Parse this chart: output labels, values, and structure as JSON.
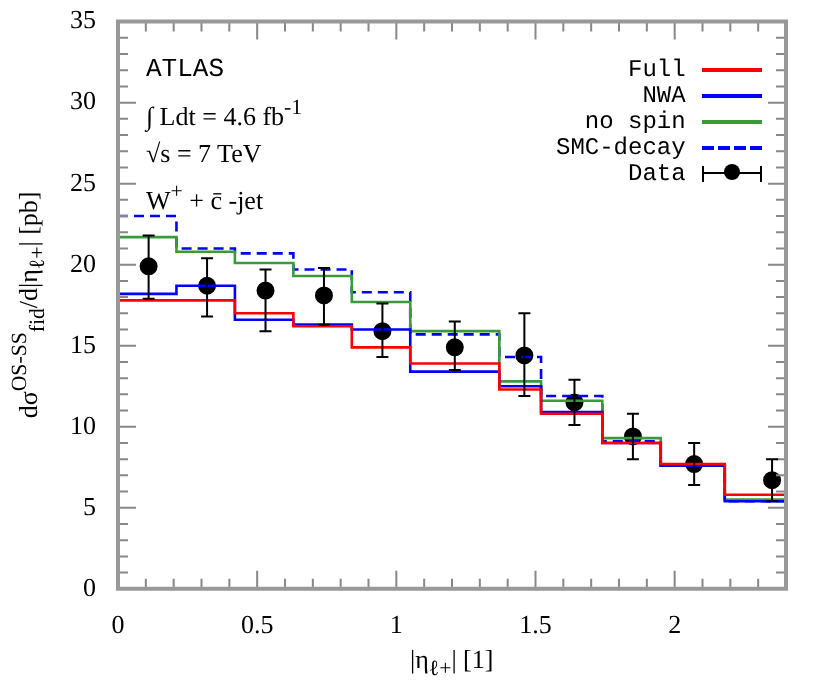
{
  "chart_data": {
    "type": "step",
    "xlabel": "|η$_{ℓ+}$| [1]",
    "ylabel": "dσ$^{OS-SS}$$_{fid}$/d|η$_{ℓ+}$| [pb]",
    "annotations": [
      "ATLAS",
      "∫ Ldt = 4.6 fb$^{-1}$",
      "√s = 7 TeV",
      "W$^{+}$ + c̄ -jet"
    ],
    "x": [
      0,
      0.21,
      0.42,
      0.63,
      0.84,
      1.05,
      1.37,
      1.52,
      1.74,
      1.95,
      2.18,
      2.4
    ],
    "series": [
      {
        "name": "Full",
        "color": "#ff0000",
        "line_style": "solid",
        "values": [
          17.8,
          17.8,
          17.0,
          16.2,
          14.9,
          13.9,
          12.3,
          10.8,
          9.0,
          7.7,
          5.8,
          5.8
        ]
      },
      {
        "name": "NWA",
        "color": "#0000ff",
        "line_style": "solid",
        "values": [
          18.2,
          18.7,
          16.6,
          16.3,
          16.0,
          13.4,
          12.5,
          10.9,
          9.0,
          7.6,
          5.4,
          5.4
        ]
      },
      {
        "name": "no spin",
        "color": "#3a9a3a",
        "line_style": "solid",
        "values": [
          21.7,
          20.8,
          20.1,
          19.3,
          17.7,
          15.9,
          12.8,
          11.6,
          9.3,
          7.6,
          5.5,
          5.5
        ]
      },
      {
        "name": "SMC-decay",
        "color": "#0000ff",
        "line_style": "dashed",
        "values": [
          23.0,
          21.0,
          20.7,
          19.7,
          18.3,
          15.7,
          14.3,
          11.9,
          9.1,
          7.6,
          5.4,
          5.4
        ]
      },
      {
        "name": "Data",
        "type": "scatter",
        "color": "#000000",
        "marker": "circle",
        "x": [
          0.11,
          0.32,
          0.53,
          0.74,
          0.95,
          1.21,
          1.46,
          1.64,
          1.85,
          2.07,
          2.35
        ],
        "values": [
          19.9,
          18.7,
          18.4,
          18.1,
          15.9,
          14.9,
          14.4,
          11.5,
          9.4,
          7.7,
          6.7
        ],
        "errors": [
          [
            17.9,
            21.8
          ],
          [
            16.8,
            20.4
          ],
          [
            15.9,
            19.7
          ],
          [
            16.3,
            19.8
          ],
          [
            14.3,
            17.6
          ],
          [
            13.5,
            16.5
          ],
          [
            11.9,
            17.0
          ],
          [
            10.1,
            12.9
          ],
          [
            8.0,
            10.8
          ],
          [
            6.4,
            9.0
          ],
          [
            5.4,
            8.0
          ]
        ]
      }
    ],
    "xlim": [
      0,
      2.4
    ],
    "xticks": [
      0,
      {
        "value": 0.1,
        "label": null
      },
      {
        "value": 0.2,
        "label": null
      },
      {
        "value": 0.3,
        "label": null
      },
      {
        "value": 0.4,
        "label": null
      },
      0.5,
      {
        "value": 0.6,
        "label": null
      },
      {
        "value": 0.7,
        "label": null
      },
      {
        "value": 0.8,
        "label": null
      },
      {
        "value": 0.9,
        "label": null
      },
      1,
      {
        "value": 1.1,
        "label": null
      },
      {
        "value": 1.2,
        "label": null
      },
      {
        "value": 1.3,
        "label": null
      },
      {
        "value": 1.4,
        "label": null
      },
      1.5,
      {
        "value": 1.6,
        "label": null
      },
      {
        "value": 1.7,
        "label": null
      },
      {
        "value": 1.8,
        "label": null
      },
      {
        "value": 1.9,
        "label": null
      },
      2,
      {
        "value": 2.1,
        "label": null
      },
      {
        "value": 2.2,
        "label": null
      },
      {
        "value": 2.3,
        "label": null
      }
    ],
    "ylim": [
      0,
      35
    ],
    "yticks": [
      0,
      {
        "value": 1,
        "label": null
      },
      {
        "value": 2,
        "label": null
      },
      {
        "value": 3,
        "label": null
      },
      {
        "value": 4,
        "label": null
      },
      5,
      {
        "value": 6,
        "label": null
      },
      {
        "value": 7,
        "label": null
      },
      {
        "value": 8,
        "label": null
      },
      {
        "value": 9,
        "label": null
      },
      10,
      {
        "value": 11,
        "label": null
      },
      {
        "value": 12,
        "label": null
      },
      {
        "value": 13,
        "label": null
      },
      {
        "value": 14,
        "label": null
      },
      15,
      {
        "value": 16,
        "label": null
      },
      {
        "value": 17,
        "label": null
      },
      {
        "value": 18,
        "label": null
      },
      {
        "value": 19,
        "label": null
      },
      20,
      {
        "value": 21,
        "label": null
      },
      {
        "value": 22,
        "label": null
      },
      {
        "value": 23,
        "label": null
      },
      {
        "value": 24,
        "label": null
      },
      25,
      {
        "value": 26,
        "label": null
      },
      {
        "value": 27,
        "label": null
      },
      {
        "value": 28,
        "label": null
      },
      {
        "value": 29,
        "label": null
      },
      30,
      {
        "value": 31,
        "label": null
      },
      {
        "value": 32,
        "label": null
      },
      {
        "value": 33,
        "label": null
      },
      {
        "value": 34,
        "label": null
      },
      35
    ],
    "legend": "top right"
  }
}
